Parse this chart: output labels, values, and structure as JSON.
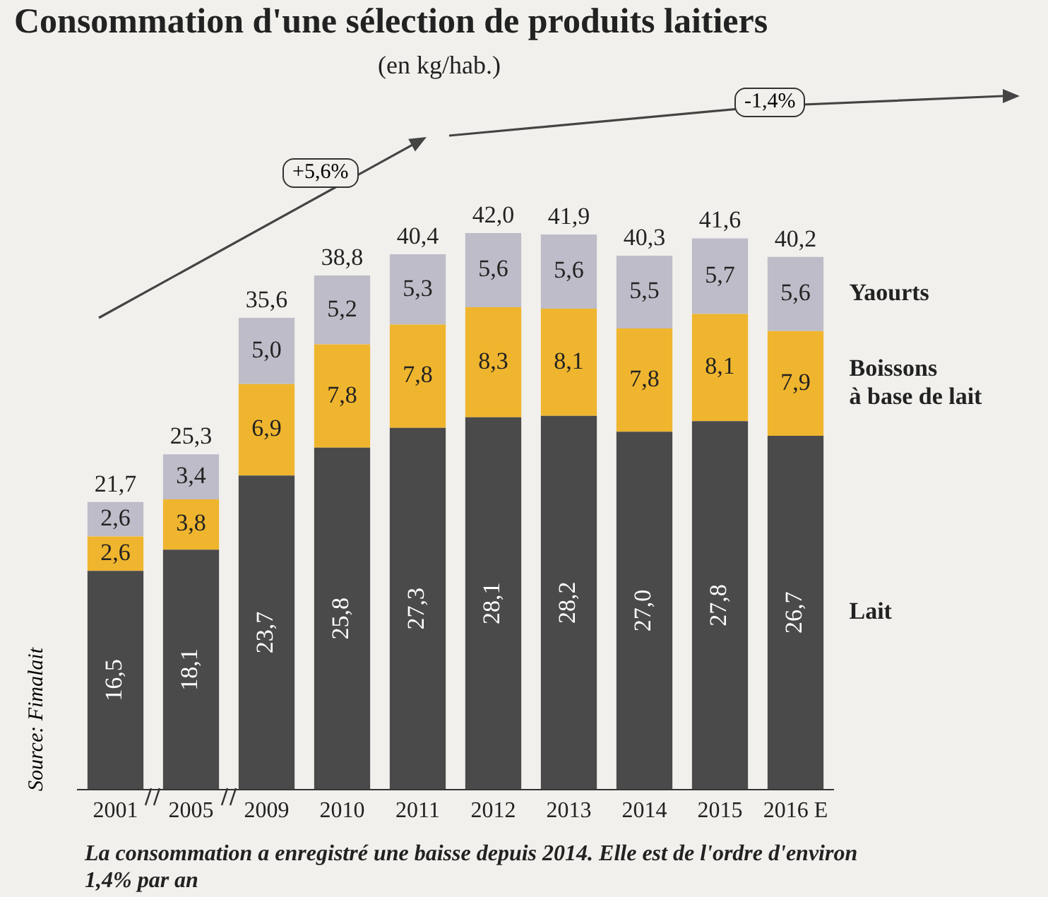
{
  "chart_data": {
    "type": "bar",
    "stacked": true,
    "title": "Consommation d'une sélection de produits laitiers",
    "subtitle": "(en kg/hab.)",
    "categories": [
      "2001",
      "2005",
      "2009",
      "2010",
      "2011",
      "2012",
      "2013",
      "2014",
      "2015",
      "2016 E"
    ],
    "series": [
      {
        "name": "Lait",
        "color": "#4b4a4a",
        "values": [
          16.5,
          18.1,
          23.7,
          25.8,
          27.3,
          28.1,
          28.2,
          27.0,
          27.8,
          26.7
        ],
        "value_labels": [
          "16,5",
          "18,1",
          "23,7",
          "25,8",
          "27,3",
          "28,1",
          "28,2",
          "27,0",
          "27,8",
          "26,7"
        ]
      },
      {
        "name": "Boissons à base de lait",
        "color": "#efb52e",
        "values": [
          2.6,
          3.8,
          6.9,
          7.8,
          7.8,
          8.3,
          8.1,
          7.8,
          8.1,
          7.9
        ],
        "value_labels": [
          "2,6",
          "3,8",
          "6,9",
          "7,8",
          "7,8",
          "8,3",
          "8,1",
          "7,8",
          "8,1",
          "7,9"
        ]
      },
      {
        "name": "Yaourts",
        "color": "#bdbcc8",
        "values": [
          2.6,
          3.4,
          5.0,
          5.2,
          5.3,
          5.6,
          5.6,
          5.5,
          5.7,
          5.6
        ],
        "value_labels": [
          "2,6",
          "3,4",
          "5,0",
          "5,2",
          "5,3",
          "5,6",
          "5,6",
          "5,5",
          "5,7",
          "5,6"
        ]
      }
    ],
    "totals": [
      "21,7",
      "25,3",
      "35,6",
      "38,8",
      "40,4",
      "42,0",
      "41,9",
      "40,3",
      "41,6",
      "40,2"
    ],
    "annotations": [
      "+5,6%",
      "-1,4%",
      "Source: Fimalait",
      "La consommation a enregistré une baisse depuis 2014. Elle est de l'ordre d'environ 1,4% par an"
    ],
    "tick_labels": "x",
    "grid": false,
    "legend": false
  }
}
